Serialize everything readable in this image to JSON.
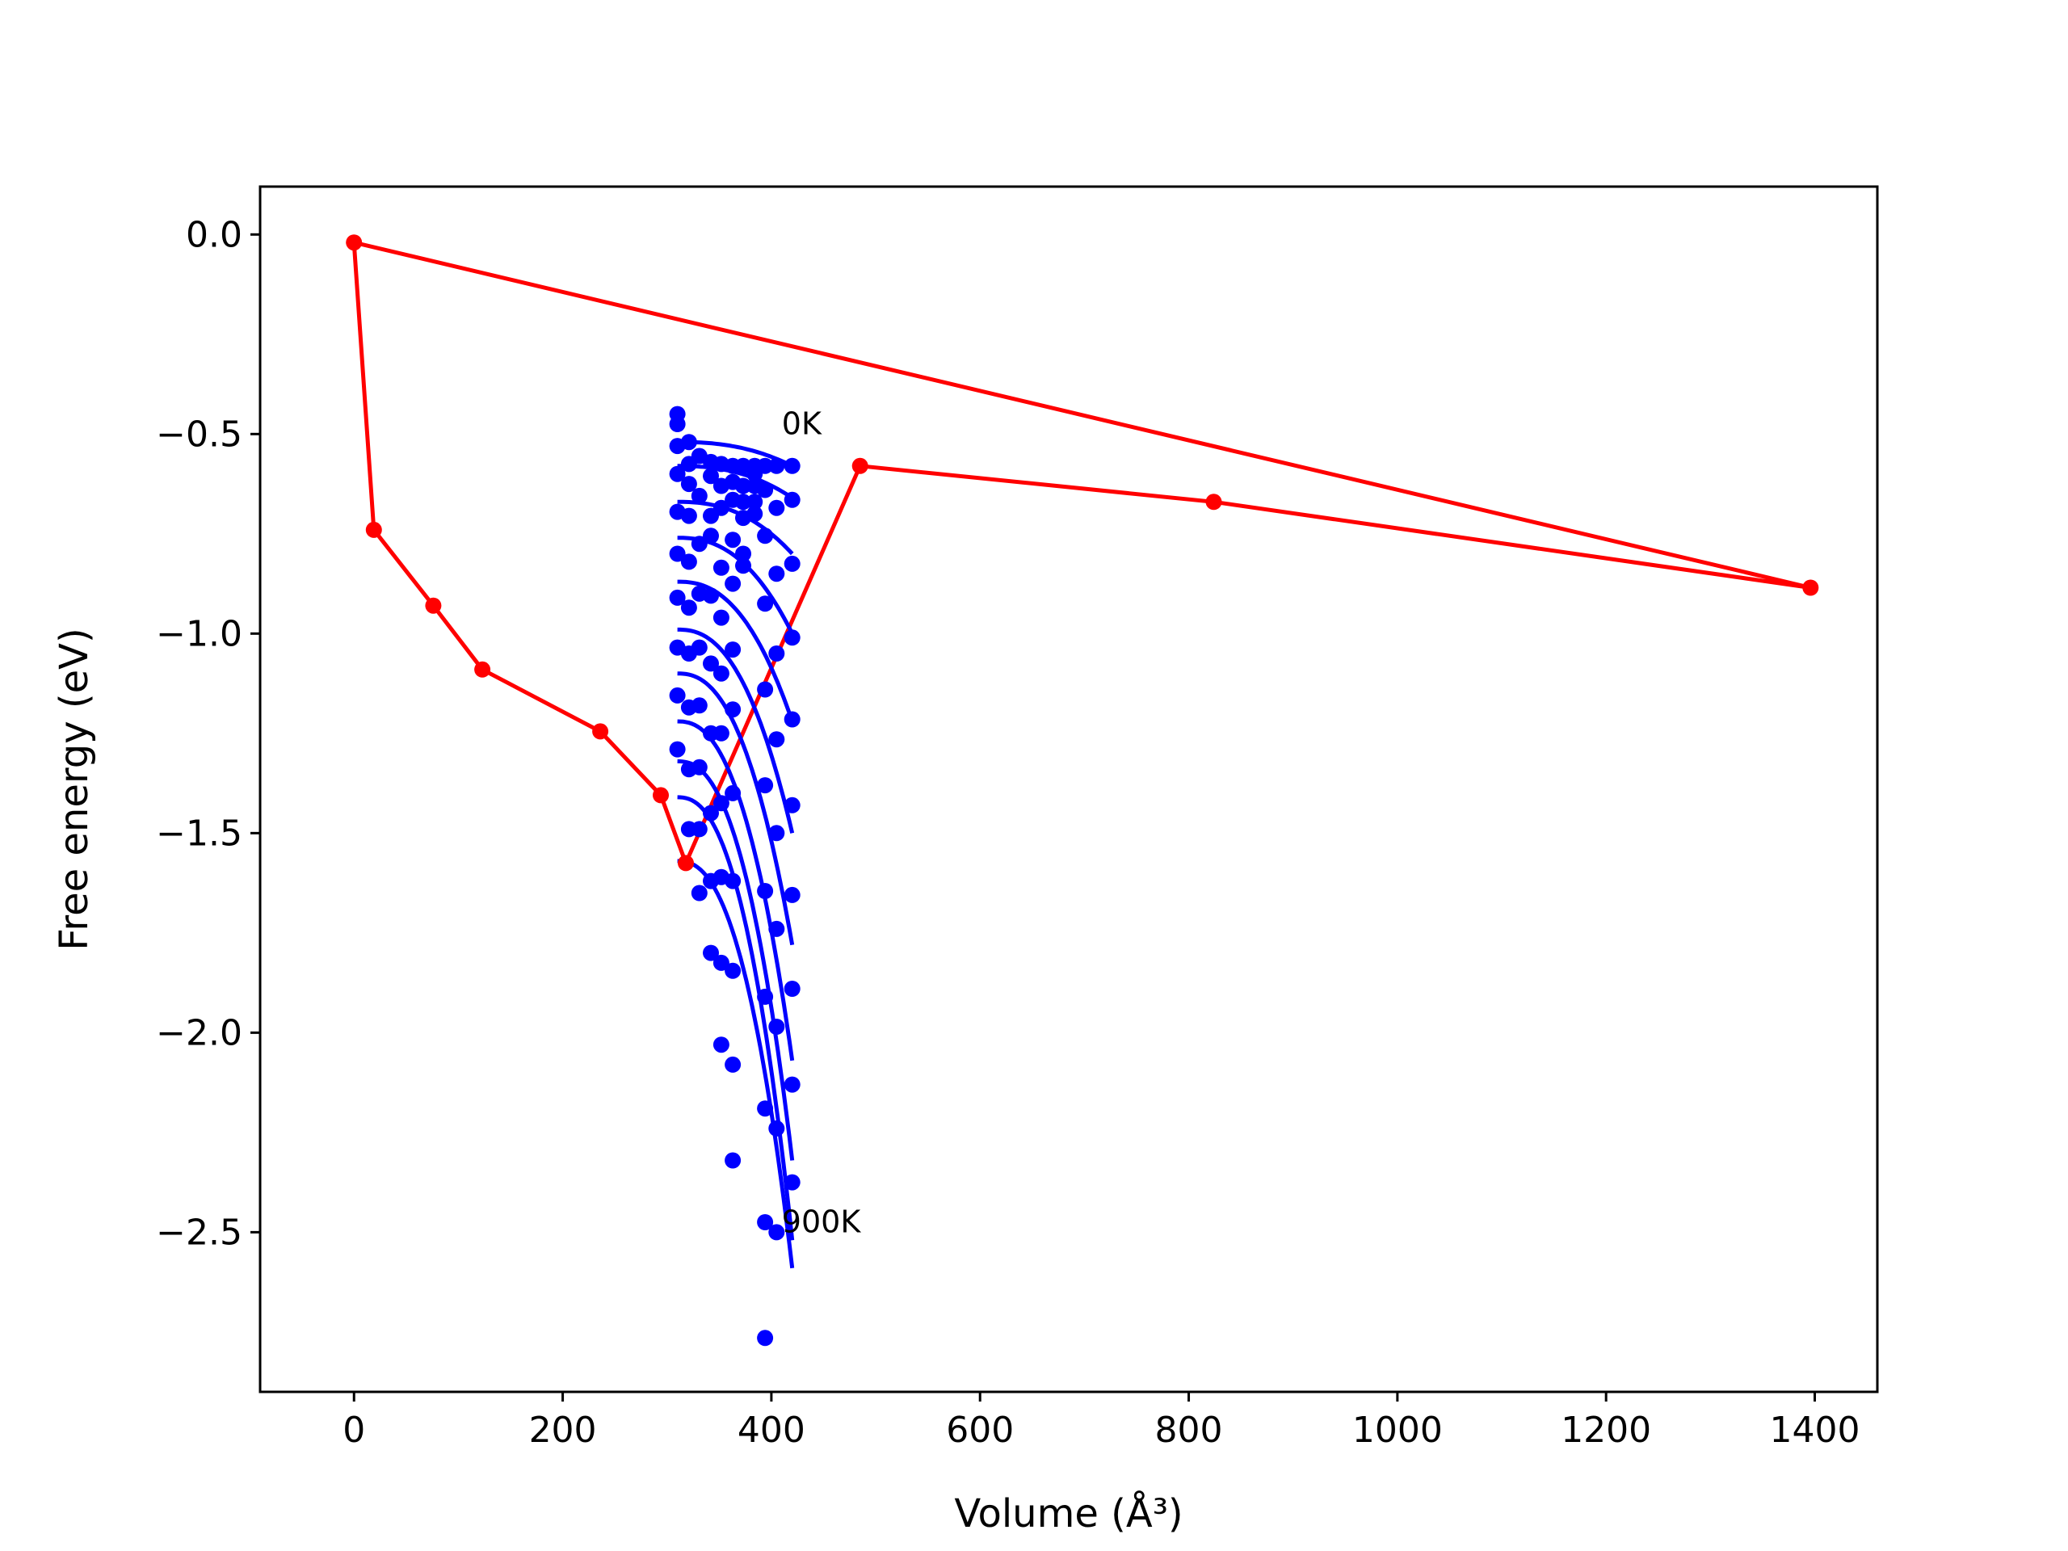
{
  "chart_data": {
    "type": "scatter",
    "xlabel": "Volume (Å³)",
    "ylabel": "Free energy (eV)",
    "xlim": [
      -90,
      1460
    ],
    "ylim": [
      -2.9,
      0.12
    ],
    "xticks": [
      {
        "value": 0,
        "label": "0"
      },
      {
        "value": 200,
        "label": "200"
      },
      {
        "value": 400,
        "label": "400"
      },
      {
        "value": 600,
        "label": "600"
      },
      {
        "value": 800,
        "label": "800"
      },
      {
        "value": 1000,
        "label": "1000"
      },
      {
        "value": 1200,
        "label": "1200"
      },
      {
        "value": 1400,
        "label": "1400"
      }
    ],
    "yticks": [
      {
        "value": 0.0,
        "label": "0.0"
      },
      {
        "value": -0.5,
        "label": "−0.5"
      },
      {
        "value": -1.0,
        "label": "−1.0"
      },
      {
        "value": -1.5,
        "label": "−1.5"
      },
      {
        "value": -2.0,
        "label": "−2.0"
      },
      {
        "value": -2.5,
        "label": "−2.5"
      }
    ],
    "grid": false,
    "legend": "none",
    "series": [
      {
        "role": "red-path",
        "color": "#ff0000",
        "style": "line+markers",
        "points": [
          [
            0,
            -0.02
          ],
          [
            19,
            -0.74
          ],
          [
            76,
            -0.93
          ],
          [
            123,
            -1.09
          ],
          [
            236,
            -1.245
          ],
          [
            294,
            -1.405
          ],
          [
            318,
            -1.575
          ],
          [
            485,
            -0.58
          ],
          [
            824,
            -0.67
          ],
          [
            1396,
            -0.885
          ],
          [
            0,
            -0.02
          ]
        ]
      },
      {
        "role": "blue-points",
        "color": "#0000ff",
        "style": "markers",
        "points": [
          [
            310,
            -0.45
          ],
          [
            310,
            -0.475
          ],
          [
            310,
            -0.53
          ],
          [
            310,
            -0.6
          ],
          [
            310,
            -0.695
          ],
          [
            310,
            -0.8
          ],
          [
            310,
            -0.91
          ],
          [
            310,
            -1.035
          ],
          [
            310,
            -1.155
          ],
          [
            310,
            -1.29
          ],
          [
            321,
            -0.52
          ],
          [
            321,
            -0.575
          ],
          [
            321,
            -0.625
          ],
          [
            321,
            -0.705
          ],
          [
            321,
            -0.82
          ],
          [
            321,
            -0.935
          ],
          [
            321,
            -1.05
          ],
          [
            321,
            -1.185
          ],
          [
            321,
            -1.34
          ],
          [
            321,
            -1.49
          ],
          [
            331,
            -0.555
          ],
          [
            331,
            -0.655
          ],
          [
            331,
            -0.775
          ],
          [
            331,
            -0.9
          ],
          [
            331,
            -1.035
          ],
          [
            331,
            -1.18
          ],
          [
            331,
            -1.335
          ],
          [
            331,
            -1.49
          ],
          [
            331,
            -1.65
          ],
          [
            342,
            -0.57
          ],
          [
            342,
            -0.605
          ],
          [
            342,
            -0.705
          ],
          [
            342,
            -0.755
          ],
          [
            342,
            -0.905
          ],
          [
            342,
            -1.075
          ],
          [
            342,
            -1.25
          ],
          [
            342,
            -1.45
          ],
          [
            342,
            -1.62
          ],
          [
            342,
            -1.8
          ],
          [
            352,
            -0.575
          ],
          [
            352,
            -0.63
          ],
          [
            352,
            -0.685
          ],
          [
            352,
            -0.835
          ],
          [
            352,
            -0.96
          ],
          [
            352,
            -1.1
          ],
          [
            352,
            -1.25
          ],
          [
            352,
            -1.425
          ],
          [
            352,
            -1.61
          ],
          [
            352,
            -1.825
          ],
          [
            352,
            -2.03
          ],
          [
            363,
            -0.58
          ],
          [
            363,
            -0.62
          ],
          [
            363,
            -0.665
          ],
          [
            363,
            -0.765
          ],
          [
            363,
            -0.875
          ],
          [
            363,
            -1.04
          ],
          [
            363,
            -1.19
          ],
          [
            363,
            -1.4
          ],
          [
            363,
            -1.62
          ],
          [
            363,
            -1.845
          ],
          [
            363,
            -2.08
          ],
          [
            363,
            -2.32
          ],
          [
            373,
            -0.58
          ],
          [
            373,
            -0.63
          ],
          [
            373,
            -0.67
          ],
          [
            373,
            -0.71
          ],
          [
            373,
            -0.8
          ],
          [
            373,
            -0.83
          ],
          [
            384,
            -0.58
          ],
          [
            384,
            -0.6
          ],
          [
            384,
            -0.63
          ],
          [
            384,
            -0.67
          ],
          [
            384,
            -0.7
          ],
          [
            394,
            -0.58
          ],
          [
            394,
            -0.64
          ],
          [
            394,
            -0.755
          ],
          [
            394,
            -0.925
          ],
          [
            394,
            -1.14
          ],
          [
            394,
            -1.38
          ],
          [
            394,
            -1.645
          ],
          [
            394,
            -1.91
          ],
          [
            394,
            -2.19
          ],
          [
            394,
            -2.475
          ],
          [
            394,
            -2.765
          ],
          [
            405,
            -0.58
          ],
          [
            405,
            -0.685
          ],
          [
            405,
            -0.85
          ],
          [
            405,
            -1.05
          ],
          [
            405,
            -1.265
          ],
          [
            405,
            -1.5
          ],
          [
            405,
            -1.74
          ],
          [
            405,
            -1.985
          ],
          [
            405,
            -2.24
          ],
          [
            405,
            -2.5
          ],
          [
            420,
            -0.58
          ],
          [
            420,
            -0.665
          ],
          [
            420,
            -0.825
          ],
          [
            420,
            -1.01
          ],
          [
            420,
            -1.215
          ],
          [
            420,
            -1.43
          ],
          [
            420,
            -1.655
          ],
          [
            420,
            -1.89
          ],
          [
            420,
            -2.13
          ],
          [
            420,
            -2.375
          ]
        ]
      },
      {
        "role": "blue-fits",
        "color": "#0000ff",
        "style": "lines",
        "start_x": 310,
        "end_x": 420,
        "start_y": [
          -0.52,
          -0.58,
          -0.67,
          -0.76,
          -0.87,
          -0.99,
          -1.1,
          -1.22,
          -1.32,
          -1.41,
          -1.57
        ],
        "end_y": [
          -0.58,
          -0.66,
          -0.8,
          -1.0,
          -1.22,
          -1.5,
          -1.78,
          -2.07,
          -2.32,
          -2.52,
          -2.59
        ]
      }
    ],
    "annotations": [
      {
        "text": "0K",
        "x": 410,
        "y": -0.5
      },
      {
        "text": "900K",
        "x": 410,
        "y": -2.5
      }
    ]
  }
}
